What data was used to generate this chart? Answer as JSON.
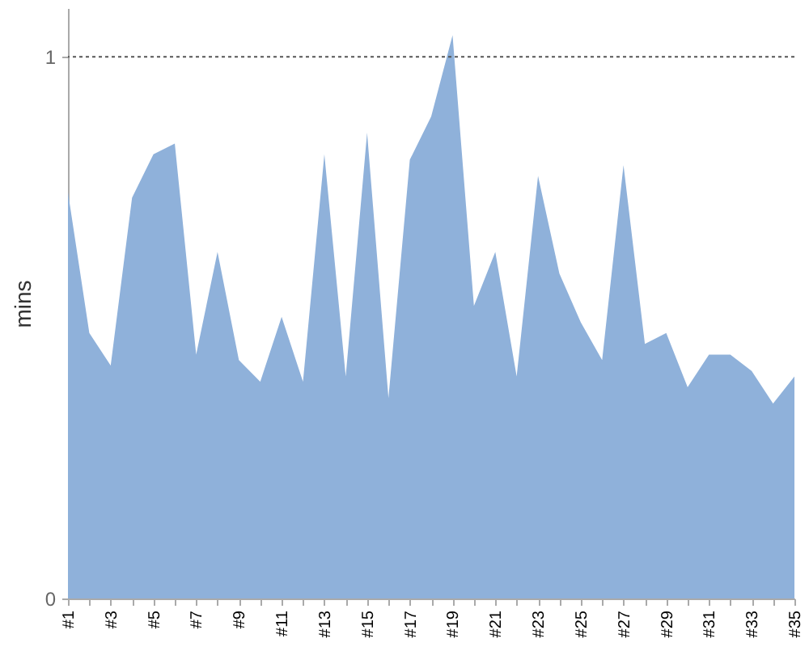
{
  "chart_data": {
    "type": "area",
    "ylabel": "mins",
    "categories": [
      "#1",
      null,
      "#3",
      null,
      "#5",
      null,
      "#7",
      null,
      "#9",
      null,
      "#11",
      null,
      "#13",
      null,
      "#15",
      null,
      "#17",
      null,
      "#19",
      null,
      "#21",
      null,
      "#23",
      null,
      "#25",
      null,
      "#27",
      null,
      "#29",
      null,
      "#31",
      null,
      "#33",
      null,
      "#35"
    ],
    "series": [
      {
        "color": "#8fb1da",
        "values": [
          0.75,
          0.49,
          0.43,
          0.74,
          0.82,
          0.84,
          0.45,
          0.64,
          0.44,
          0.4,
          0.52,
          0.4,
          0.82,
          0.41,
          0.86,
          0.37,
          0.81,
          0.89,
          1.04,
          0.54,
          0.64,
          0.41,
          0.78,
          0.6,
          0.51,
          0.44,
          0.8,
          0.47,
          0.49,
          0.39,
          0.45,
          0.45,
          0.42,
          0.36,
          0.41
        ]
      }
    ],
    "ylim": [
      0,
      1.09
    ],
    "yticks": [
      0,
      1
    ],
    "ref_lines": [
      {
        "axis": "y",
        "value": 1,
        "line_style": "dotted",
        "color": "#555555"
      }
    ],
    "grid": false
  }
}
